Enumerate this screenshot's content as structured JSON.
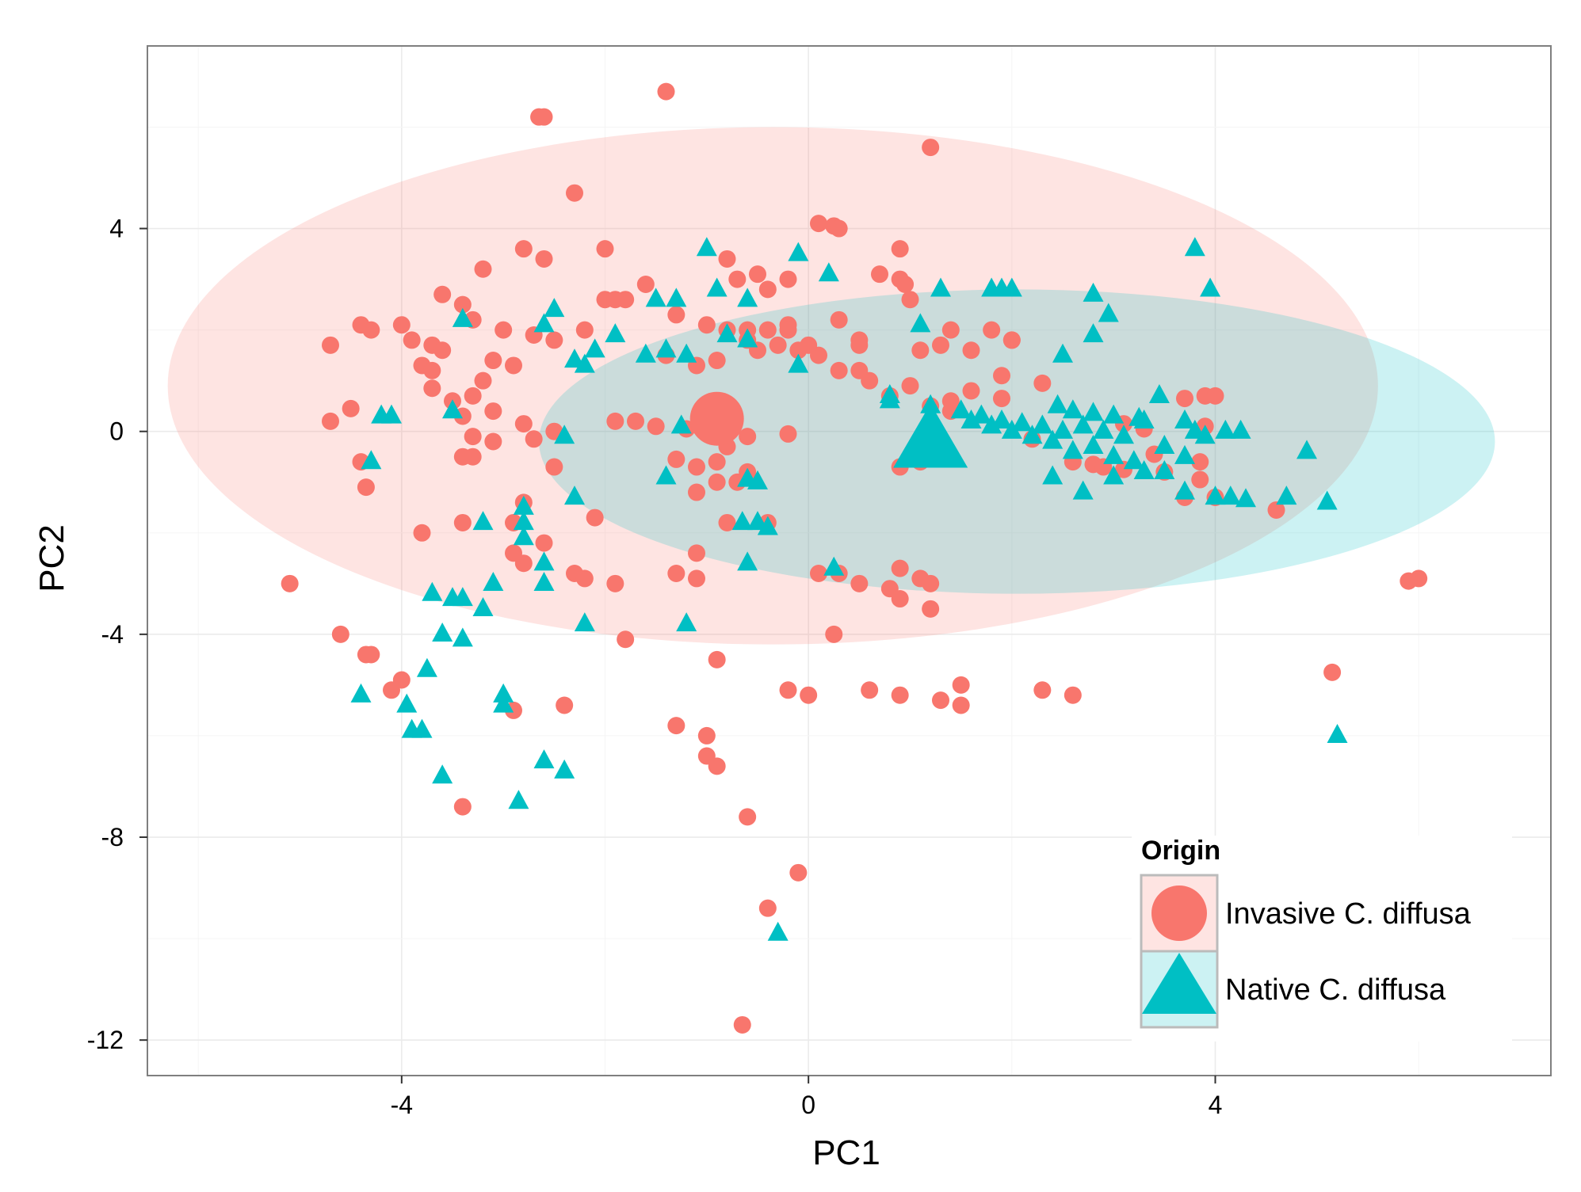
{
  "chart_data": {
    "type": "scatter",
    "title": "",
    "xlabel": "PC1",
    "ylabel": "PC2",
    "xlim": [
      -6.5,
      7.3
    ],
    "ylim": [
      -12.7,
      7.6
    ],
    "x_ticks": [
      -4,
      0,
      4
    ],
    "y_ticks": [
      4,
      0,
      -4,
      -8,
      -12
    ],
    "grid": true,
    "legend": {
      "title": "Origin",
      "position": "bottom-right",
      "entries": [
        "Invasive C. diffusa",
        "Native C. diffusa"
      ]
    },
    "series": [
      {
        "name": "Invasive C. diffusa",
        "marker": "circle",
        "color": "#F8766D",
        "centroid": [
          -0.9,
          0.25
        ],
        "ellipse": {
          "center": [
            -0.35,
            0.9
          ],
          "rx": 5.95,
          "ry": 5.1
        },
        "points": [
          [
            -1.4,
            6.7
          ],
          [
            -2.6,
            6.2
          ],
          [
            -2.65,
            6.2
          ],
          [
            1.2,
            5.6
          ],
          [
            -2.3,
            4.7
          ],
          [
            0.1,
            4.1
          ],
          [
            0.25,
            4.05
          ],
          [
            0.3,
            4.0
          ],
          [
            -2.0,
            3.6
          ],
          [
            -2.8,
            3.6
          ],
          [
            -2.6,
            3.4
          ],
          [
            -3.2,
            3.2
          ],
          [
            -0.8,
            3.4
          ],
          [
            0.9,
            3.6
          ],
          [
            -0.5,
            3.1
          ],
          [
            -0.2,
            3.0
          ],
          [
            -0.7,
            3.0
          ],
          [
            -1.6,
            2.9
          ],
          [
            -0.4,
            2.8
          ],
          [
            0.7,
            3.1
          ],
          [
            0.9,
            3.0
          ],
          [
            0.95,
            2.9
          ],
          [
            1.0,
            2.6
          ],
          [
            -4.0,
            2.1
          ],
          [
            -3.6,
            2.7
          ],
          [
            -3.4,
            2.5
          ],
          [
            -3.3,
            2.2
          ],
          [
            -3.0,
            2.0
          ],
          [
            -2.7,
            1.9
          ],
          [
            -2.5,
            1.8
          ],
          [
            -2.2,
            2.0
          ],
          [
            -2.0,
            2.6
          ],
          [
            -1.8,
            2.6
          ],
          [
            -1.9,
            2.6
          ],
          [
            -1.3,
            2.3
          ],
          [
            -1.0,
            2.1
          ],
          [
            -0.8,
            2.0
          ],
          [
            -0.6,
            2.0
          ],
          [
            -0.4,
            2.0
          ],
          [
            -0.2,
            2.1
          ],
          [
            -4.4,
            2.1
          ],
          [
            -4.3,
            2.0
          ],
          [
            -4.7,
            1.7
          ],
          [
            -3.9,
            1.8
          ],
          [
            -3.7,
            1.7
          ],
          [
            -3.6,
            1.6
          ],
          [
            -3.1,
            1.4
          ],
          [
            -2.9,
            1.3
          ],
          [
            -3.8,
            1.3
          ],
          [
            -3.7,
            1.2
          ],
          [
            -3.2,
            1.0
          ],
          [
            -3.7,
            0.85
          ],
          [
            -3.3,
            0.7
          ],
          [
            -3.5,
            0.6
          ],
          [
            -3.1,
            0.4
          ],
          [
            -4.7,
            0.2
          ],
          [
            -4.5,
            0.45
          ],
          [
            -3.4,
            0.3
          ],
          [
            -2.8,
            0.15
          ],
          [
            -2.5,
            0.0
          ],
          [
            -3.3,
            -0.1
          ],
          [
            -3.1,
            -0.2
          ],
          [
            -2.7,
            -0.15
          ],
          [
            -4.4,
            -0.6
          ],
          [
            -4.35,
            -1.1
          ],
          [
            -3.3,
            -0.5
          ],
          [
            -3.4,
            -0.5
          ],
          [
            -2.8,
            -1.4
          ],
          [
            -2.9,
            -1.8
          ],
          [
            -3.8,
            -2.0
          ],
          [
            -3.4,
            -1.8
          ],
          [
            -2.5,
            -0.7
          ],
          [
            -1.9,
            0.2
          ],
          [
            -1.7,
            0.2
          ],
          [
            -1.5,
            0.1
          ],
          [
            -1.2,
            0.05
          ],
          [
            -1.1,
            -0.7
          ],
          [
            -1.1,
            -1.2
          ],
          [
            -0.9,
            -1.0
          ],
          [
            -0.7,
            -1.0
          ],
          [
            -0.6,
            -0.8
          ],
          [
            -0.9,
            -0.6
          ],
          [
            -1.3,
            -0.55
          ],
          [
            -0.8,
            -0.3
          ],
          [
            -0.6,
            -0.1
          ],
          [
            -0.2,
            -0.05
          ],
          [
            -0.1,
            1.6
          ],
          [
            0.1,
            1.5
          ],
          [
            0.3,
            1.2
          ],
          [
            0.5,
            1.2
          ],
          [
            0.6,
            1.0
          ],
          [
            0.3,
            2.2
          ],
          [
            0.5,
            1.7
          ],
          [
            0.8,
            0.7
          ],
          [
            1.2,
            0.5
          ],
          [
            1.0,
            0.9
          ],
          [
            1.4,
            0.6
          ],
          [
            1.6,
            0.8
          ],
          [
            1.1,
            1.6
          ],
          [
            1.3,
            1.7
          ],
          [
            1.6,
            1.6
          ],
          [
            2.0,
            1.8
          ],
          [
            1.4,
            2.0
          ],
          [
            1.8,
            2.0
          ],
          [
            0.5,
            1.8
          ],
          [
            0.0,
            1.7
          ],
          [
            -0.2,
            2.0
          ],
          [
            -1.4,
            1.5
          ],
          [
            -1.1,
            1.3
          ],
          [
            -0.9,
            1.4
          ],
          [
            -0.5,
            1.6
          ],
          [
            -0.3,
            1.7
          ],
          [
            -0.6,
            1.8
          ],
          [
            -2.8,
            -2.6
          ],
          [
            -2.9,
            -2.4
          ],
          [
            -2.6,
            -2.2
          ],
          [
            -2.1,
            -1.7
          ],
          [
            -2.3,
            -2.8
          ],
          [
            -2.2,
            -2.9
          ],
          [
            -1.9,
            -3.0
          ],
          [
            -1.1,
            -2.4
          ],
          [
            -1.3,
            -2.8
          ],
          [
            -1.1,
            -2.9
          ],
          [
            -1.8,
            -4.1
          ],
          [
            -0.9,
            -4.5
          ],
          [
            -0.4,
            -1.8
          ],
          [
            -0.8,
            -1.8
          ],
          [
            0.1,
            -2.8
          ],
          [
            0.3,
            -2.8
          ],
          [
            0.5,
            -3.0
          ],
          [
            0.8,
            -3.1
          ],
          [
            0.9,
            -3.3
          ],
          [
            1.1,
            -2.9
          ],
          [
            1.2,
            -3.0
          ],
          [
            1.2,
            -3.5
          ],
          [
            0.25,
            -4.0
          ],
          [
            0.9,
            -2.7
          ],
          [
            -5.1,
            -3.0
          ],
          [
            -4.6,
            -4.0
          ],
          [
            -4.35,
            -4.4
          ],
          [
            -4.3,
            -4.4
          ],
          [
            -4.0,
            -4.9
          ],
          [
            -4.1,
            -5.1
          ],
          [
            -2.9,
            -5.5
          ],
          [
            -2.4,
            -5.4
          ],
          [
            -1.3,
            -5.8
          ],
          [
            -1.0,
            -6.0
          ],
          [
            -1.0,
            -6.4
          ],
          [
            -0.9,
            -6.6
          ],
          [
            -3.4,
            -7.4
          ],
          [
            -0.6,
            -7.6
          ],
          [
            -0.1,
            -8.7
          ],
          [
            -0.4,
            -9.4
          ],
          [
            -0.65,
            -11.7
          ],
          [
            -0.2,
            -5.1
          ],
          [
            0.0,
            -5.2
          ],
          [
            0.6,
            -5.1
          ],
          [
            0.9,
            -5.2
          ],
          [
            1.3,
            -5.3
          ],
          [
            1.5,
            -5.4
          ],
          [
            1.5,
            -5.0
          ],
          [
            2.3,
            -5.1
          ],
          [
            2.6,
            -5.2
          ],
          [
            5.15,
            -4.75
          ],
          [
            6.0,
            -2.9
          ],
          [
            5.9,
            -2.95
          ],
          [
            4.6,
            -1.55
          ],
          [
            3.5,
            -0.8
          ],
          [
            3.4,
            -0.45
          ],
          [
            3.7,
            0.65
          ],
          [
            3.9,
            0.7
          ],
          [
            4.0,
            0.7
          ],
          [
            3.1,
            0.15
          ],
          [
            3.3,
            0.05
          ],
          [
            2.6,
            -0.6
          ],
          [
            2.8,
            -0.65
          ],
          [
            3.1,
            -0.75
          ],
          [
            2.9,
            -0.7
          ],
          [
            1.9,
            0.65
          ],
          [
            2.2,
            -0.15
          ],
          [
            2.3,
            0.95
          ],
          [
            1.9,
            1.1
          ],
          [
            2.0,
            1.8
          ],
          [
            3.9,
            0.1
          ],
          [
            3.85,
            -0.6
          ],
          [
            3.85,
            -0.95
          ],
          [
            4.0,
            -1.3
          ],
          [
            3.7,
            -1.3
          ],
          [
            1.4,
            0.4
          ],
          [
            0.9,
            -0.7
          ],
          [
            1.1,
            -0.6
          ]
        ]
      },
      {
        "name": "Native C. diffusa",
        "marker": "triangle",
        "color": "#00BFC4",
        "centroid": [
          1.2,
          -0.2
        ],
        "ellipse": {
          "center": [
            2.05,
            -0.2
          ],
          "rx": 4.7,
          "ry": 3.0
        },
        "points": [
          [
            -1.0,
            3.6
          ],
          [
            -0.1,
            3.5
          ],
          [
            0.2,
            3.1
          ],
          [
            1.3,
            2.8
          ],
          [
            1.8,
            2.8
          ],
          [
            1.9,
            2.8
          ],
          [
            2.0,
            2.8
          ],
          [
            2.8,
            2.7
          ],
          [
            3.8,
            3.6
          ],
          [
            3.95,
            2.8
          ],
          [
            2.95,
            2.3
          ],
          [
            2.8,
            1.9
          ],
          [
            2.5,
            1.5
          ],
          [
            -0.6,
            2.6
          ],
          [
            -1.5,
            2.6
          ],
          [
            -1.3,
            2.6
          ],
          [
            -0.9,
            2.8
          ],
          [
            -2.5,
            2.4
          ],
          [
            -2.6,
            2.1
          ],
          [
            -3.4,
            2.2
          ],
          [
            -1.9,
            1.9
          ],
          [
            -0.8,
            1.9
          ],
          [
            -0.6,
            1.8
          ],
          [
            -1.4,
            1.6
          ],
          [
            -1.6,
            1.5
          ],
          [
            -1.2,
            1.5
          ],
          [
            1.1,
            2.1
          ],
          [
            -2.2,
            1.3
          ],
          [
            -2.1,
            1.6
          ],
          [
            -2.3,
            1.4
          ],
          [
            -0.1,
            1.3
          ],
          [
            0.8,
            0.7
          ],
          [
            1.2,
            0.5
          ],
          [
            1.5,
            0.4
          ],
          [
            1.7,
            0.3
          ],
          [
            1.9,
            0.2
          ],
          [
            2.1,
            0.15
          ],
          [
            2.3,
            0.1
          ],
          [
            2.5,
            0.0
          ],
          [
            2.7,
            0.1
          ],
          [
            2.9,
            0.0
          ],
          [
            3.1,
            -0.1
          ],
          [
            3.3,
            0.2
          ],
          [
            3.5,
            -0.3
          ],
          [
            3.7,
            -0.5
          ],
          [
            3.5,
            -0.8
          ],
          [
            3.2,
            -0.6
          ],
          [
            3.0,
            -0.5
          ],
          [
            2.8,
            -0.3
          ],
          [
            2.6,
            -0.4
          ],
          [
            2.4,
            -0.2
          ],
          [
            2.2,
            -0.1
          ],
          [
            2.0,
            0.0
          ],
          [
            1.8,
            0.1
          ],
          [
            1.6,
            0.2
          ],
          [
            2.45,
            0.5
          ],
          [
            2.6,
            0.4
          ],
          [
            2.8,
            0.35
          ],
          [
            3.0,
            0.3
          ],
          [
            3.25,
            0.25
          ],
          [
            3.45,
            0.7
          ],
          [
            3.7,
            0.2
          ],
          [
            3.8,
            0.0
          ],
          [
            3.9,
            -0.1
          ],
          [
            4.1,
            0.0
          ],
          [
            4.25,
            0.0
          ],
          [
            4.15,
            -1.3
          ],
          [
            4.3,
            -1.35
          ],
          [
            4.0,
            -1.3
          ],
          [
            3.7,
            -1.2
          ],
          [
            2.4,
            -0.9
          ],
          [
            2.7,
            -1.2
          ],
          [
            3.3,
            -0.8
          ],
          [
            3.0,
            -0.9
          ],
          [
            4.9,
            -0.4
          ],
          [
            4.7,
            -1.3
          ],
          [
            5.1,
            -1.4
          ],
          [
            5.2,
            -6.0
          ],
          [
            -4.2,
            0.3
          ],
          [
            -4.1,
            0.3
          ],
          [
            -4.3,
            -0.6
          ],
          [
            -3.5,
            0.4
          ],
          [
            -2.4,
            -0.1
          ],
          [
            -2.3,
            -1.3
          ],
          [
            -1.25,
            0.1
          ],
          [
            -1.4,
            -0.9
          ],
          [
            -0.6,
            -0.95
          ],
          [
            -0.5,
            -1.0
          ],
          [
            -0.65,
            -1.8
          ],
          [
            -0.5,
            -1.8
          ],
          [
            -0.6,
            -2.6
          ],
          [
            -0.4,
            -1.9
          ],
          [
            -2.8,
            -1.8
          ],
          [
            -2.8,
            -1.5
          ],
          [
            -3.2,
            -1.8
          ],
          [
            -2.8,
            -2.1
          ],
          [
            -2.6,
            -2.6
          ],
          [
            -2.6,
            -3.0
          ],
          [
            -2.2,
            -3.8
          ],
          [
            -3.1,
            -3.0
          ],
          [
            -3.2,
            -3.5
          ],
          [
            -3.4,
            -3.3
          ],
          [
            -3.5,
            -3.3
          ],
          [
            -3.7,
            -3.2
          ],
          [
            -3.6,
            -4.0
          ],
          [
            -3.4,
            -4.1
          ],
          [
            -3.75,
            -4.7
          ],
          [
            -4.4,
            -5.2
          ],
          [
            -3.95,
            -5.4
          ],
          [
            -3.9,
            -5.9
          ],
          [
            -3.8,
            -5.9
          ],
          [
            -3.6,
            -6.8
          ],
          [
            -3.0,
            -5.2
          ],
          [
            -3.0,
            -5.4
          ],
          [
            -2.6,
            -6.5
          ],
          [
            -2.4,
            -6.7
          ],
          [
            -2.85,
            -7.3
          ],
          [
            -1.2,
            -3.8
          ],
          [
            0.25,
            -2.7
          ],
          [
            -0.3,
            -9.9
          ],
          [
            0.8,
            0.6
          ]
        ]
      }
    ]
  }
}
